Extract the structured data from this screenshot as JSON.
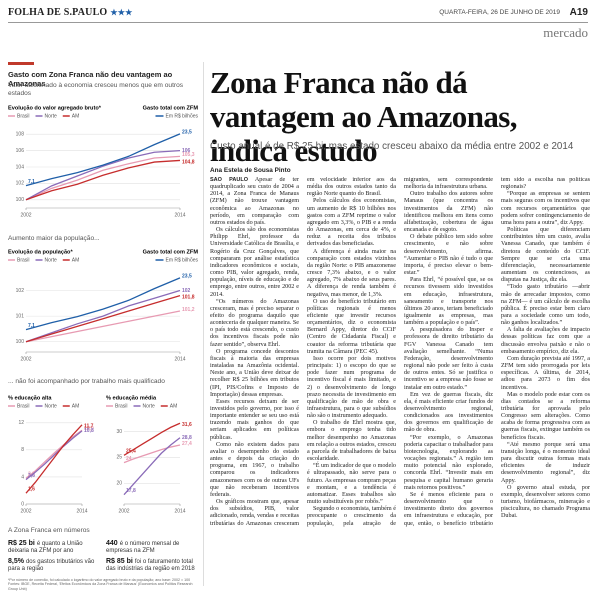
{
  "header": {
    "logo": "FOLHA DE S.PAULO",
    "date": "QUARTA-FEIRA, 26 DE JUNHO DE 2019",
    "page": "A19",
    "section": "mercado"
  },
  "sidebar": {
    "title": "Gasto com Zona Franca não deu vantagem ao Amazonas",
    "subtitle1": "Valor adicionado à economia cresceu menos que em outros estados",
    "subtitle2": "Aumento maior da população...",
    "subtitle3": "... não foi acompanhado por trabalho mais qualificado",
    "numbers_title": "A Zona Franca em números",
    "stats": [
      {
        "figure": "R$ 25 bi",
        "text": "é quanto a União deixaria na ZFM por ano"
      },
      {
        "figure": "440",
        "text": "é o número mensal de empresas na ZFM"
      },
      {
        "figure": "8,5%",
        "text": "dos gastos tributários vão para a região"
      },
      {
        "figure": "R$ 85 bi",
        "text": "foi o faturamento total das indústrias da região em 2018"
      }
    ],
    "footnote": "*Por número de conexão, foi calculado o logaritmo do valor agregado bruto e da população; ano base: 2002 = 100   Fontes: IBGE, Receita Federal, 'Efeitos Econômicos da Zona Franca de Manaus' (Economics and Politics Research Group Unb)"
  },
  "article": {
    "headline": "Zona Franca não dá vantagem ao Amazonas, indica estudo",
    "subhead": "Custo anual é de R$ 25 bi, mas estado cresceu abaixo da média entre 2002 e 2014",
    "byline": "Ana Estela de Sousa Pinto",
    "dateline": "SÃO PAULO",
    "paragraphs": [
      "Apesar de ter quadruplicado seu custo de 2004 a 2014, a Zona Franca de Manaus (ZFM) não trouxe vantagem econômica ao Amazonas no período, em comparação com outros estados do país.",
      "Os cálculos são dos economistas Philipp Ehrl, professor da Universidade Católica de Brasília, e Rogério da Cruz Gonçalves, que compararam por análise estatística indicadores econômicos e sociais, como PIB, valor agregado, renda, população, níveis de educação e de emprego, entre outros, entre 2002 e 2014.",
      "“Os números do Amazonas cresceram, mas é preciso separar o efeito do programa daquilo que aconteceria de qualquer maneira. Se o país todo está crescendo, o custo dos incentivos fiscais pode não fazer sentido”, observa Ehrl.",
      "O programa concede descontos fiscais à maioria das empresas instaladas na Amazônia ocidental. Neste ano, a União deve deixar de recolher R$ 25 bilhões em tributos (IPI, PIS/Cofins e Imposto de Importação) dessas empresas.",
      "Esses recursos deixam de ser investidos pelo governo, por isso é importante entender se seu uso está trazendo mais ganhos do que seriam aplicados em políticas públicas.",
      "Como não existem dados para avaliar o desempenho do estado antes e depois da criação do programa, em 1967, o trabalho comparou os indicadores amazonenses com os de outras UFs que não receberam incentivos federais.",
      "Os gráficos mostram que, apesar dos subsídios, PIB, valor adicionado, renda, vendas e receitas tributárias do Amazonas cresceram em velocidade inferior aos da média dos outros estados tanto da região Norte quanto do Brasil.",
      "Pelos cálculos dos economistas, um aumento de R$ 10 bilhões nos gastos com a ZFM reprime o valor agregado em 3,3%, o PIB e a renda do Amazonas, em cerca de 4%, e reduz a receita dos tributos derivados das beneficiadas.",
      "A diferença é ainda maior na comparação com estados vizinhos da região Norte: o PIB amazonense cresce 7,3% abaixo, e o valor agregado, 7% abaixo de seus pares. A diferença de renda também é negativa, mas menor, de 1,3%.",
      "O uso de benefício tributário em políticas regionais é menos eficiente que investir recursos orçamentários, diz o economista Bernard Appy, diretor do CCiF (Centro de Cidadania Fiscal) e coautor da reforma tributária que tramita na Câmara (PEC 45).",
      "Isso ocorre por dois motivos principais: 1) o escopo do que se pode fazer num programa de incentivo fiscal é mais limitado, e 2) o desenvolvimento de longo prazo necessita de investimento em qualificação de mão de obra e infraestrutura, para o que subsídios não são o instrumento adequado.",
      "O trabalho de Ehrl mostra que, embora o emprego tenha tido melhor desempenho no Amazonas em relação a outros estados, cresceu a parcela de trabalhadores de baixa escolaridade.",
      "“É um indicador de que o modelo é ultrapassado, não serve para o futuro. As empresas compram peças e montam, e a tendência é automatizar. Esses trabalhos são muito substituíveis por robôs.”",
      "Segundo o economista, também é preocupante o crescimento da população, pela atração de migrantes, sem correspondente melhoria da infraestrutura urbana.",
      "Outro trabalho dos autores sobre Manaus (que concentra os investimentos da ZFM) não identificou melhora em itens como alfabetização, cobertura de água encanada e de esgoto.",
      "O debate público tem sido sobre crescimento, e não sobre desenvolvimento, afirma. “Aumentar o PIB não é tudo o que importa, é preciso elevar o bem-estar.”",
      "Para Ehrl, “é possível que, se os recursos tivessem sido investidos em educação, infraestrutura, saneamento e transporte nos últimos 20 anos, teriam beneficiado igualmente as empresas, mas também a população e o país”.",
      "A pesquisadora do Insper e professora de direito tributário da FGV Vanessa Canado tem avaliação semelhante. “Numa Federação, desenvolvimento regional não pode ser feito à custa de outros entes. Só se justifica o incentivo se a empresa não fosse se instalar em outro estado.”",
      "Em vez de guerras fiscais, diz ela, é mais eficiente criar fundos de desenvolvimento regional, condicionados aos investimentos dos governos em qualificação de mão de obra.",
      "“Por exemplo, o Amazonas poderia capacitar o trabalhador para biotecnologia, explorando as vocações regionais.” A região tem muito potencial não explorado, concorda Ehrl. “Investir mais em pesquisa e capital humano geraria mais retornos positivos.”",
      "Se é menos eficiente para o desenvolvimento que o investimento direto dos governos em infraestrutura e educação, por que, então, o benefício tributário tem sido a escolha nas políticas regionais?",
      "“Porque as empresas se sentem mais seguras com os incentivos que com recursos orçamentários que podem sofrer contingenciamento de uma hora para a outra”, diz Appy.",
      "Políticas que diferenciam contribuintes têm um custo, avalia Vanessa Canado, que também é diretora de conteúdo do CCiF. Sempre que se cria uma diferenciação, necessariamente aumentam os contenciosos, as disputas na Justiça, diz ela.",
      "“Todo gasto tributário —abrir mão de arrecadar impostos, como na ZFM— é um cálculo de escolha pública. É preciso estar bem claro para a sociedade como um todo, não ganhos localizados.”",
      "A falta de avaliações de impacto dessas políticas faz com que a discussão envolva paixão e não o embasamento empírico, diz ela.",
      "Com duração prevista até 1997, a ZFM tem sido prorrogada por leis específicas. A última, de 2014, adiou para 2073 o fim dos incentivos.",
      "Mas o modelo pode estar com os dias contados se a reforma tributária for aprovada pelo Congresso sem alterações. Como acaba de forma progressiva com as guerras fiscais, extingue também os benefícios fiscais.",
      "“Até mesmo porque será uma transição longa, é o momento ideal para discutir outras formas mais eficientes de induzir desenvolvimento regional”, diz Appy.",
      "O governo atual estuda, por exemplo, desenvolver setores como turismo, biofármacos, mineração e piscicultura, no chamado Programa Dubai."
    ]
  },
  "chart_data": [
    {
      "type": "line",
      "title": "Evolução do valor agregado bruto*",
      "y2_title": "Gasto total com ZFM",
      "x": [
        2002,
        2004,
        2006,
        2008,
        2010,
        2012,
        2014
      ],
      "xlim": [
        2002,
        2014
      ],
      "xticks": [
        2002,
        2014
      ],
      "ylim": [
        99,
        109
      ],
      "yticks": [
        100,
        102,
        104,
        106,
        108
      ],
      "y2lim": [
        0,
        26
      ],
      "grid": true,
      "series": [
        {
          "name": "Brasil",
          "color": "#e79ab2",
          "values": [
            100,
            101.4,
            102.4,
            103.6,
            104.4,
            105.1,
            105.3
          ],
          "end_label": "105,3"
        },
        {
          "name": "Norte",
          "color": "#8a6bb8",
          "values": [
            100,
            101.7,
            102.9,
            104.1,
            105.1,
            105.8,
            106
          ],
          "end_label": "106"
        },
        {
          "name": "AM",
          "color": "#c62d2d",
          "values": [
            100,
            101.1,
            101.9,
            103,
            103.9,
            104.6,
            104.8
          ],
          "end_label": "104,8"
        },
        {
          "name": "Em R$ bilhões",
          "color": "#1f5fa8",
          "axis": "y2",
          "values": [
            7.1,
            9.3,
            11.2,
            13.6,
            16.4,
            20.1,
            23.5
          ],
          "start_label": "7,1",
          "end_label": "23,5"
        }
      ]
    },
    {
      "type": "line",
      "title": "Evolução da população*",
      "y2_title": "Gasto total com ZFM",
      "x": [
        2002,
        2004,
        2006,
        2008,
        2010,
        2012,
        2014
      ],
      "xlim": [
        2002,
        2014
      ],
      "xticks": [
        2002,
        2014
      ],
      "ylim": [
        99.6,
        102.8
      ],
      "yticks": [
        100,
        101,
        102
      ],
      "y2lim": [
        0,
        26
      ],
      "grid": true,
      "series": [
        {
          "name": "Brasil",
          "color": "#e79ab2",
          "values": [
            100,
            100.2,
            100.4,
            100.6,
            100.8,
            101,
            101.2
          ],
          "end_label": "101,2"
        },
        {
          "name": "Norte",
          "color": "#8a6bb8",
          "values": [
            100,
            100.35,
            100.7,
            101,
            101.4,
            101.7,
            102
          ],
          "end_label": "102"
        },
        {
          "name": "AM",
          "color": "#c62d2d",
          "values": [
            100,
            100.3,
            100.6,
            100.9,
            101.2,
            101.5,
            101.8
          ],
          "end_label": "101,8"
        },
        {
          "name": "Em R$ bilhões",
          "color": "#1f5fa8",
          "axis": "y2",
          "values": [
            7.1,
            9.3,
            11.2,
            13.6,
            16.4,
            20.1,
            23.5
          ],
          "start_label": "7,1",
          "end_label": "23,5"
        }
      ]
    },
    {
      "type": "line",
      "title": "% educação alta",
      "x": [
        2002,
        2004,
        2006,
        2008,
        2010,
        2012,
        2014
      ],
      "xlim": [
        2002,
        2014
      ],
      "xticks": [
        2002,
        2014
      ],
      "ylim": [
        0,
        13
      ],
      "yticks": [
        0,
        4,
        8,
        12
      ],
      "grid": true,
      "series": [
        {
          "name": "Brasil",
          "color": "#e79ab2",
          "values": [
            3.8,
            4.9,
            6.2,
            7.5,
            8.7,
            9.9,
            10.9
          ],
          "start_label": "3,8",
          "end_label": "10,9"
        },
        {
          "name": "Norte",
          "color": "#8a6bb8",
          "values": [
            3.6,
            4.7,
            5.9,
            7.2,
            8.5,
            9.7,
            10.8
          ],
          "start_label": "3,6",
          "end_label": "10,8"
        },
        {
          "name": "AM",
          "color": "#c62d2d",
          "values": [
            1.6,
            3.2,
            5,
            6.8,
            8.6,
            10.2,
            11.7
          ],
          "start_label": "1,6",
          "end_label": "11,7"
        }
      ]
    },
    {
      "type": "line",
      "title": "% educação média",
      "x": [
        2002,
        2004,
        2006,
        2008,
        2010,
        2012,
        2014
      ],
      "xlim": [
        2002,
        2014
      ],
      "xticks": [
        2002,
        2014
      ],
      "ylim": [
        16,
        33
      ],
      "yticks": [
        20,
        25,
        30
      ],
      "grid": true,
      "series": [
        {
          "name": "Brasil",
          "color": "#e79ab2",
          "values": [
            24,
            24.7,
            25.3,
            25.9,
            26.5,
            27,
            27.4
          ],
          "start_label": "24",
          "end_label": "27,4"
        },
        {
          "name": "Norte",
          "color": "#8a6bb8",
          "values": [
            17.8,
            19.8,
            21.8,
            23.8,
            25.8,
            27.4,
            28.8
          ],
          "start_label": "17,8",
          "end_label": "28,8"
        },
        {
          "name": "AM",
          "color": "#c62d2d",
          "values": [
            25.4,
            26.5,
            27.6,
            28.7,
            29.8,
            30.8,
            31.6
          ],
          "start_label": "25,4",
          "end_label": "31,6"
        }
      ]
    }
  ]
}
